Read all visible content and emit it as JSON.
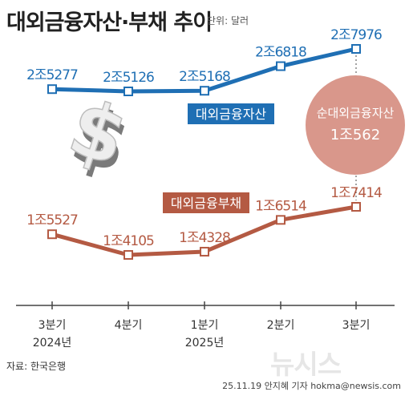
{
  "title": "대외금융자산·부채 추이",
  "unit": "단위: 달러",
  "source": "자료: 한국은행",
  "credit": "25.11.19 안지혜 기자 hokma@newsis.com",
  "watermark": "뉴시스",
  "colors": {
    "assets": "#1f6fb4",
    "liabilities": "#b45a43",
    "bubble": "#d9978b",
    "axis": "#444444"
  },
  "net_assets": {
    "label": "순대외금융자산",
    "value": "1조562"
  },
  "chart_data": {
    "type": "line",
    "title": "대외금융자산·부채 추이",
    "categories": [
      "3분기",
      "4분기",
      "1분기",
      "2분기",
      "3분기"
    ],
    "year_labels": [
      "2024년",
      "2025년"
    ],
    "series": [
      {
        "name": "대외금융자산",
        "values": [
          25277,
          25126,
          25168,
          26818,
          27976
        ],
        "labels": [
          "2조5277",
          "2조5126",
          "2조5168",
          "2조6818",
          "2조7976"
        ],
        "unit": "억 달러"
      },
      {
        "name": "대외금융부채",
        "values": [
          15527,
          14105,
          14328,
          16514,
          17414
        ],
        "labels": [
          "1조5527",
          "1조4105",
          "1조4328",
          "1조6514",
          "1조7414"
        ],
        "unit": "억 달러"
      }
    ],
    "grid": false,
    "legend": "inline"
  }
}
